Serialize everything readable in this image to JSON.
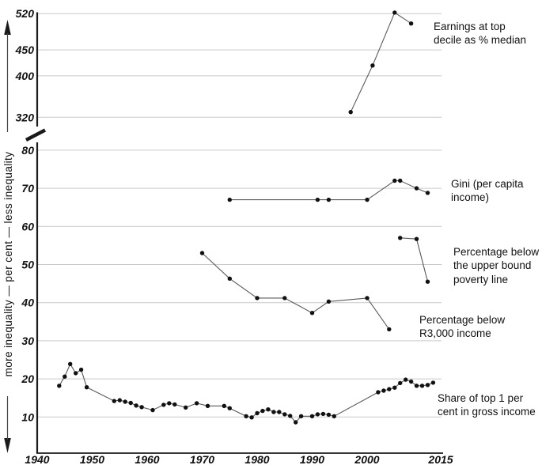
{
  "figure": {
    "title": "",
    "colors": {
      "background": "#ffffff",
      "grid": "#c9c9c9",
      "axis": "#1a1a1a",
      "series_line": "#595959",
      "marker": "#111111",
      "text": "#111111"
    }
  },
  "chart_data": {
    "type": "line",
    "title": "",
    "grid": true,
    "legend_position": "right-annotations",
    "x_axis": {
      "ticks": [
        "1940",
        "1950",
        "1960",
        "1970",
        "1980",
        "1990",
        "2000",
        "2015"
      ],
      "tick_years": [
        1940,
        1950,
        1960,
        1970,
        1980,
        1990,
        2000,
        2015
      ],
      "range": [
        1940,
        2015
      ]
    },
    "y_axis": {
      "label_top": "less inequality",
      "label_middle": "per cent",
      "label_bottom": "more inequality",
      "arrow_up": true,
      "arrow_down": true,
      "axis_break": true
    },
    "panels": {
      "top": {
        "y_ticks": [
          320,
          400,
          450,
          520
        ],
        "ylim": [
          315,
          532
        ]
      },
      "bottom": {
        "y_ticks": [
          10,
          20,
          30,
          40,
          50,
          60,
          70,
          80
        ],
        "ylim": [
          0,
          82
        ]
      }
    },
    "series": [
      {
        "id": "earnings-top-decile",
        "panel": "top",
        "label": "Earnings at top\ndecile as % median",
        "points": [
          [
            1997,
            330
          ],
          [
            2001,
            420
          ],
          [
            2005,
            522
          ],
          [
            2008,
            501
          ]
        ]
      },
      {
        "id": "gini-per-capita-income",
        "panel": "bottom",
        "label": "Gini (per capita\nincome)",
        "points": [
          [
            1975,
            67
          ],
          [
            1991,
            67
          ],
          [
            1993,
            67
          ],
          [
            2000,
            67
          ],
          [
            2005,
            72
          ],
          [
            2006,
            72
          ],
          [
            2009,
            70
          ],
          [
            2011,
            68.8
          ]
        ]
      },
      {
        "id": "below-upper-bound-poverty-line",
        "panel": "bottom",
        "label": "Percentage below\nthe upper bound\npoverty line",
        "points": [
          [
            2006,
            57
          ],
          [
            2009,
            56.7
          ],
          [
            2011,
            45.5
          ]
        ]
      },
      {
        "id": "below-r3000-income",
        "panel": "bottom",
        "label": "Percentage below\nR3,000 income",
        "points": [
          [
            1970,
            53
          ],
          [
            1975,
            46.3
          ],
          [
            1980,
            41.2
          ],
          [
            1985,
            41.2
          ],
          [
            1990,
            37.3
          ],
          [
            1993,
            40.3
          ],
          [
            2000,
            41.2
          ],
          [
            2004,
            33
          ]
        ]
      },
      {
        "id": "share-top1-gross-income",
        "panel": "bottom",
        "label": "Share of top 1 per\ncent in gross income",
        "points": [
          [
            1944,
            18.2
          ],
          [
            1945,
            20.6
          ],
          [
            1946,
            23.9
          ],
          [
            1947,
            21.5
          ],
          [
            1948,
            22.4
          ],
          [
            1949,
            17.8
          ],
          [
            1954,
            14.2
          ],
          [
            1955,
            14.4
          ],
          [
            1956,
            14.0
          ],
          [
            1957,
            13.7
          ],
          [
            1958,
            13.0
          ],
          [
            1959,
            12.6
          ],
          [
            1961,
            11.8
          ],
          [
            1963,
            13.2
          ],
          [
            1964,
            13.6
          ],
          [
            1965,
            13.3
          ],
          [
            1967,
            12.5
          ],
          [
            1969,
            13.6
          ],
          [
            1971,
            12.9
          ],
          [
            1974,
            12.9
          ],
          [
            1975,
            12.3
          ],
          [
            1978,
            10.2
          ],
          [
            1979,
            9.9
          ],
          [
            1980,
            11.0
          ],
          [
            1981,
            11.6
          ],
          [
            1982,
            12.0
          ],
          [
            1983,
            11.3
          ],
          [
            1984,
            11.3
          ],
          [
            1985,
            10.7
          ],
          [
            1986,
            10.3
          ],
          [
            1987,
            8.6
          ],
          [
            1988,
            10.2
          ],
          [
            1990,
            10.2
          ],
          [
            1991,
            10.7
          ],
          [
            1992,
            10.8
          ],
          [
            1993,
            10.6
          ],
          [
            1994,
            10.2
          ],
          [
            2002,
            16.5
          ],
          [
            2003,
            16.9
          ],
          [
            2004,
            17.3
          ],
          [
            2005,
            17.7
          ],
          [
            2006,
            18.9
          ],
          [
            2007,
            19.8
          ],
          [
            2008,
            19.3
          ],
          [
            2009,
            18.2
          ],
          [
            2010,
            18.2
          ],
          [
            2011,
            18.4
          ],
          [
            2012,
            19.0
          ]
        ]
      }
    ]
  }
}
